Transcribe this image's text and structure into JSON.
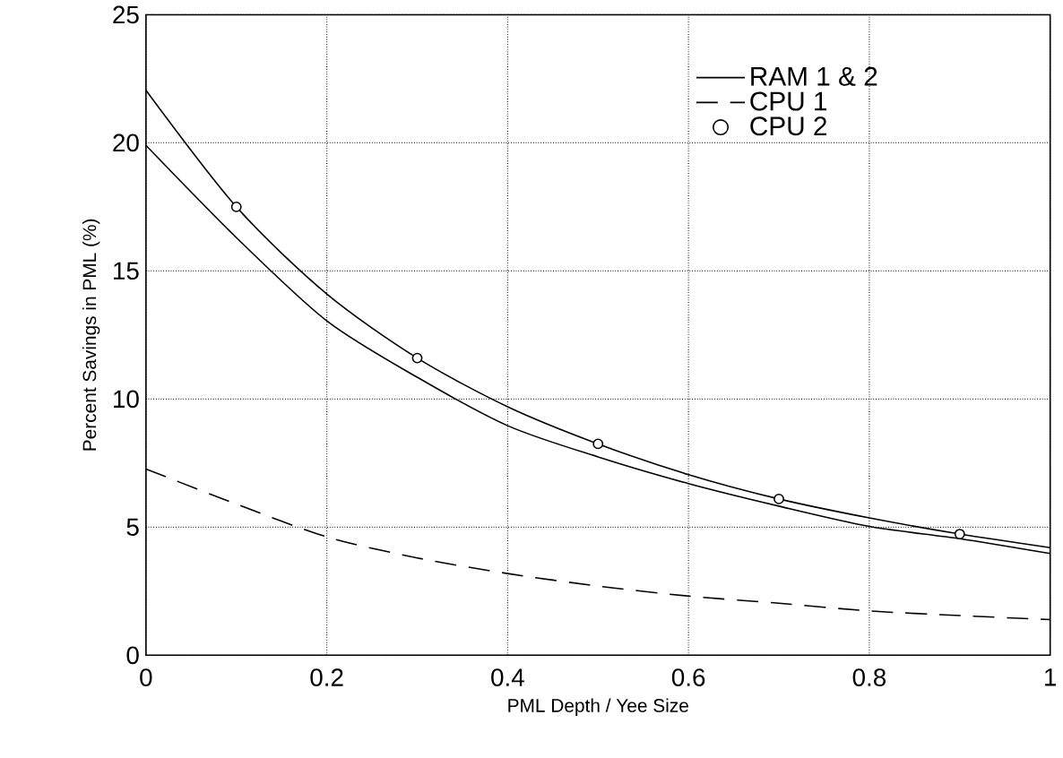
{
  "chart_data": {
    "type": "line",
    "xlabel": "PML Depth / Yee Size",
    "ylabel": "Percent Savings in PML (%)",
    "xlim": [
      0,
      1
    ],
    "ylim": [
      0,
      25
    ],
    "xticks": [
      0,
      0.2,
      0.4,
      0.6,
      0.8,
      1
    ],
    "yticks": [
      0,
      5,
      10,
      15,
      20,
      25
    ],
    "grid": true,
    "legend": "top right",
    "marker": "none",
    "series": [
      {
        "name": "RAM 1 & 2",
        "color": "#000000",
        "line_style": "solid",
        "x": [
          0,
          0.1,
          0.2,
          0.3,
          0.4,
          0.5,
          0.6,
          0.7,
          0.8,
          0.9,
          1
        ],
        "values": [
          19.9,
          16.3,
          13.05,
          10.85,
          8.96,
          7.74,
          6.7,
          5.82,
          5.03,
          4.55,
          3.97
        ]
      },
      {
        "name": "CPU 1",
        "color": "#000000",
        "line_style": "dashed",
        "x": [
          0,
          0.1,
          0.2,
          0.3,
          0.4,
          0.5,
          0.6,
          0.7,
          0.8,
          0.9,
          1
        ],
        "values": [
          7.27,
          5.9,
          4.62,
          3.8,
          3.19,
          2.7,
          2.31,
          2.03,
          1.73,
          1.55,
          1.39
        ]
      },
      {
        "color": "#000000",
        "line_style": "solid",
        "x": [
          0,
          0.1,
          0.2,
          0.3,
          0.4,
          0.5,
          0.6,
          0.7,
          0.8,
          0.9,
          1
        ],
        "values": [
          22.05,
          17.5,
          14.1,
          11.6,
          9.7,
          8.25,
          7.05,
          6.1,
          5.36,
          4.73,
          4.2
        ]
      },
      {
        "name": "CPU 2",
        "type": "scatter",
        "color": "#000000",
        "marker": "circle",
        "x": [
          0.1,
          0.3,
          0.5,
          0.7,
          0.9
        ],
        "values": [
          17.5,
          11.6,
          8.25,
          6.1,
          4.73
        ]
      }
    ]
  }
}
